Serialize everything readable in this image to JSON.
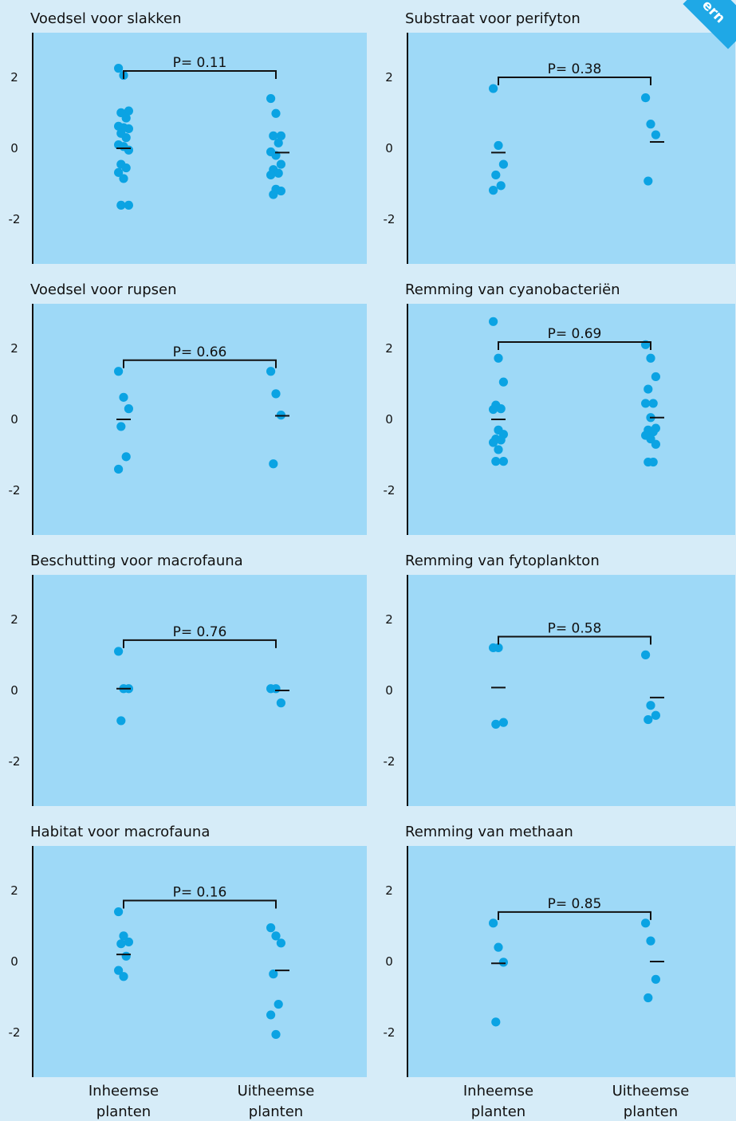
{
  "corner_badge": {
    "text": "ern"
  },
  "x_category_labels": {
    "left": [
      "Inheemse",
      "planten"
    ],
    "right": [
      "Uitheemse",
      "planten"
    ]
  },
  "colors": {
    "panel": "#9ed9f7",
    "background": "#d6ecf8",
    "points": "#0ba3e3",
    "ink": "#111111",
    "badge": "#1fa8e6"
  },
  "chart_data": [
    {
      "type": "scatter",
      "title": "Voedsel voor slakken",
      "p_label": "P= 0.11",
      "yticks": [
        2,
        0,
        -2
      ],
      "ytick_labels": [
        "2",
        "0",
        "-2"
      ],
      "ylim": [
        -3.25,
        3.25
      ],
      "categories": [
        "Inheemse planten",
        "Uitheemse planten"
      ],
      "series": [
        {
          "category": "Inheemse planten",
          "mean": 0.0,
          "points": [
            2.25,
            2.05,
            1.05,
            1.0,
            0.85,
            0.62,
            0.58,
            0.55,
            0.42,
            0.3,
            0.1,
            0.05,
            -0.05,
            -0.45,
            -0.55,
            -0.68,
            -0.85,
            -1.6,
            -1.6
          ]
        },
        {
          "category": "Uitheemse planten",
          "mean": -0.12,
          "points": [
            1.4,
            0.98,
            0.35,
            0.35,
            0.15,
            -0.1,
            -0.2,
            -0.45,
            -0.6,
            -0.7,
            -0.75,
            -1.15,
            -1.2,
            -1.3
          ]
        }
      ]
    },
    {
      "type": "scatter",
      "title": "Substraat voor perifyton",
      "p_label": "P= 0.38",
      "yticks": [
        2,
        0,
        -2
      ],
      "ytick_labels": [
        "2",
        "0",
        "-2"
      ],
      "ylim": [
        -3.25,
        3.25
      ],
      "categories": [
        "Inheemse planten",
        "Uitheemse planten"
      ],
      "series": [
        {
          "category": "Inheemse planten",
          "mean": -0.12,
          "points": [
            1.68,
            0.08,
            -0.45,
            -0.75,
            -1.05,
            -1.18
          ]
        },
        {
          "category": "Uitheemse planten",
          "mean": 0.18,
          "points": [
            1.42,
            0.68,
            0.38,
            -0.92
          ]
        }
      ]
    },
    {
      "type": "scatter",
      "title": "Voedsel voor rupsen",
      "p_label": "P= 0.66",
      "yticks": [
        2,
        0,
        -2
      ],
      "ytick_labels": [
        "2",
        "0",
        "-2"
      ],
      "ylim": [
        -3.25,
        3.25
      ],
      "categories": [
        "Inheemse planten",
        "Uitheemse planten"
      ],
      "series": [
        {
          "category": "Inheemse planten",
          "mean": 0.0,
          "points": [
            1.35,
            0.62,
            0.3,
            -0.2,
            -1.05,
            -1.4
          ]
        },
        {
          "category": "Uitheemse planten",
          "mean": 0.1,
          "points": [
            1.35,
            0.72,
            0.12,
            -1.25
          ]
        }
      ]
    },
    {
      "type": "scatter",
      "title": "Remming van cyanobacteriën",
      "p_label": "P= 0.69",
      "yticks": [
        2,
        0,
        -2
      ],
      "ytick_labels": [
        "2",
        "0",
        "-2"
      ],
      "ylim": [
        -3.25,
        3.25
      ],
      "categories": [
        "Inheemse planten",
        "Uitheemse planten"
      ],
      "series": [
        {
          "category": "Inheemse planten",
          "mean": 0.0,
          "points": [
            2.75,
            1.72,
            1.05,
            0.4,
            0.3,
            0.28,
            -0.3,
            -0.42,
            -0.55,
            -0.58,
            -0.65,
            -0.85,
            -1.18,
            -1.18
          ]
        },
        {
          "category": "Uitheemse planten",
          "mean": 0.05,
          "points": [
            2.1,
            1.72,
            1.2,
            0.85,
            0.45,
            0.45,
            0.05,
            -0.25,
            -0.3,
            -0.35,
            -0.45,
            -0.55,
            -0.7,
            -1.2,
            -1.2
          ]
        }
      ]
    },
    {
      "type": "scatter",
      "title": "Beschutting voor macrofauna",
      "p_label": "P= 0.76",
      "yticks": [
        2,
        0,
        -2
      ],
      "ytick_labels": [
        "2",
        "0",
        "-2"
      ],
      "ylim": [
        -3.25,
        3.25
      ],
      "categories": [
        "Inheemse planten",
        "Uitheemse planten"
      ],
      "series": [
        {
          "category": "Inheemse planten",
          "mean": 0.05,
          "points": [
            1.1,
            0.05,
            0.05,
            -0.85
          ]
        },
        {
          "category": "Uitheemse planten",
          "mean": 0.0,
          "points": [
            0.05,
            0.05,
            -0.35
          ]
        }
      ]
    },
    {
      "type": "scatter",
      "title": "Remming van fytoplankton",
      "p_label": "P= 0.58",
      "yticks": [
        2,
        0,
        -2
      ],
      "ytick_labels": [
        "2",
        "0",
        "-2"
      ],
      "ylim": [
        -3.25,
        3.25
      ],
      "categories": [
        "Inheemse planten",
        "Uitheemse planten"
      ],
      "series": [
        {
          "category": "Inheemse planten",
          "mean": 0.08,
          "points": [
            1.2,
            1.2,
            -0.9,
            -0.95
          ]
        },
        {
          "category": "Uitheemse planten",
          "mean": -0.2,
          "points": [
            1.0,
            -0.42,
            -0.7,
            -0.82
          ]
        }
      ]
    },
    {
      "type": "scatter",
      "title": "Habitat voor macrofauna",
      "p_label": "P= 0.16",
      "yticks": [
        2,
        0,
        -2
      ],
      "ytick_labels": [
        "2",
        "0",
        "-2"
      ],
      "ylim": [
        -3.25,
        3.25
      ],
      "categories": [
        "Inheemse planten",
        "Uitheemse planten"
      ],
      "series": [
        {
          "category": "Inheemse planten",
          "mean": 0.2,
          "points": [
            1.4,
            0.72,
            0.55,
            0.5,
            0.15,
            -0.25,
            -0.42
          ]
        },
        {
          "category": "Uitheemse planten",
          "mean": -0.25,
          "points": [
            0.95,
            0.72,
            0.52,
            -0.35,
            -1.2,
            -1.5,
            -2.05
          ]
        }
      ]
    },
    {
      "type": "scatter",
      "title": "Remming van methaan",
      "p_label": "P= 0.85",
      "yticks": [
        2,
        0,
        -2
      ],
      "ytick_labels": [
        "2",
        "0",
        "-2"
      ],
      "ylim": [
        -3.25,
        3.25
      ],
      "categories": [
        "Inheemse planten",
        "Uitheemse planten"
      ],
      "series": [
        {
          "category": "Inheemse planten",
          "mean": -0.05,
          "points": [
            1.08,
            0.4,
            -0.02,
            -1.7
          ]
        },
        {
          "category": "Uitheemse planten",
          "mean": 0.0,
          "points": [
            1.08,
            0.58,
            -0.5,
            -1.02
          ]
        }
      ]
    }
  ]
}
